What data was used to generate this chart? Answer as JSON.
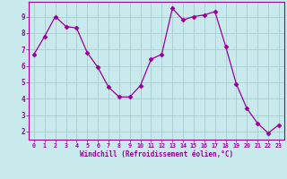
{
  "x": [
    0,
    1,
    2,
    3,
    4,
    5,
    6,
    7,
    8,
    9,
    10,
    11,
    12,
    13,
    14,
    15,
    16,
    17,
    18,
    19,
    20,
    21,
    22,
    23
  ],
  "y": [
    6.7,
    7.8,
    9.0,
    8.4,
    8.3,
    6.8,
    5.9,
    4.7,
    4.1,
    4.1,
    4.8,
    6.4,
    6.7,
    9.5,
    8.8,
    9.0,
    9.1,
    9.3,
    7.2,
    4.9,
    3.4,
    2.5,
    1.9,
    2.4
  ],
  "line_color": "#990099",
  "marker": "D",
  "marker_size": 2.5,
  "bg_color": "#c8eaec",
  "grid_color": "#a8cdd0",
  "xlabel": "Windchill (Refroidissement éolien,°C)",
  "ylabel_ticks": [
    2,
    3,
    4,
    5,
    6,
    7,
    8,
    9
  ],
  "xtick_labels": [
    "0",
    "1",
    "2",
    "3",
    "4",
    "5",
    "6",
    "7",
    "8",
    "9",
    "10",
    "11",
    "12",
    "13",
    "14",
    "15",
    "16",
    "17",
    "18",
    "19",
    "20",
    "21",
    "22",
    "23"
  ],
  "ylim": [
    1.5,
    9.9
  ],
  "xlim": [
    -0.5,
    23.5
  ]
}
